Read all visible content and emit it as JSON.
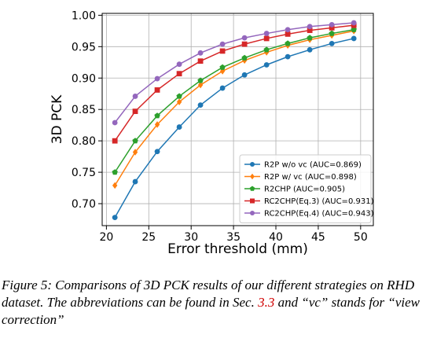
{
  "chart_data": {
    "type": "line",
    "xlabel": "Error threshold (mm)",
    "ylabel": "3D PCK",
    "xlim": [
      19.5,
      51.5
    ],
    "ylim": [
      0.665,
      1.003
    ],
    "xticks": [
      20,
      25,
      30,
      35,
      40,
      45,
      50
    ],
    "xtick_labels": [
      "20",
      "25",
      "30",
      "35",
      "40",
      "45",
      "50"
    ],
    "yticks": [
      0.7,
      0.75,
      0.8,
      0.85,
      0.9,
      0.95,
      1.0
    ],
    "ytick_labels": [
      "0.70",
      "0.75",
      "0.80",
      "0.85",
      "0.90",
      "0.95",
      "1.00"
    ],
    "grid": true,
    "legend_position": "lower-right",
    "x": [
      21.0,
      23.4,
      26.0,
      28.6,
      31.1,
      33.7,
      36.3,
      38.9,
      41.4,
      44.0,
      46.6,
      49.2
    ],
    "series": [
      {
        "name": "R2P w/o vc (AUC=0.869)",
        "color": "#1f77b4",
        "marker": "circle",
        "values": [
          0.678,
          0.735,
          0.783,
          0.822,
          0.857,
          0.884,
          0.905,
          0.921,
          0.934,
          0.945,
          0.955,
          0.963
        ]
      },
      {
        "name": "R2P w/  vc (AUC=0.898)",
        "color": "#ff7f0e",
        "marker": "diamond",
        "values": [
          0.729,
          0.782,
          0.826,
          0.862,
          0.889,
          0.911,
          0.928,
          0.941,
          0.952,
          0.961,
          0.968,
          0.975
        ]
      },
      {
        "name": "R2CHP (AUC=0.905)",
        "color": "#2ca02c",
        "marker": "pentagon",
        "values": [
          0.75,
          0.8,
          0.84,
          0.871,
          0.896,
          0.917,
          0.932,
          0.945,
          0.955,
          0.964,
          0.971,
          0.977
        ]
      },
      {
        "name": "RC2CHP(Eq.3) (AUC=0.931)",
        "color": "#d62728",
        "marker": "square",
        "values": [
          0.8,
          0.847,
          0.881,
          0.907,
          0.927,
          0.943,
          0.954,
          0.963,
          0.97,
          0.976,
          0.98,
          0.984
        ]
      },
      {
        "name": "RC2CHP(Eq.4) (AUC=0.943)",
        "color": "#9467bd",
        "marker": "circle",
        "values": [
          0.829,
          0.871,
          0.899,
          0.922,
          0.94,
          0.954,
          0.964,
          0.971,
          0.977,
          0.982,
          0.985,
          0.988
        ]
      }
    ]
  },
  "caption": {
    "text_before": "Figure 5: Comparisons of 3D PCK results of our different strategies on RHD dataset. The abbreviations can be found in Sec. ",
    "ref": "3.3",
    "text_after": " and “vc” stands for “view correction”"
  }
}
